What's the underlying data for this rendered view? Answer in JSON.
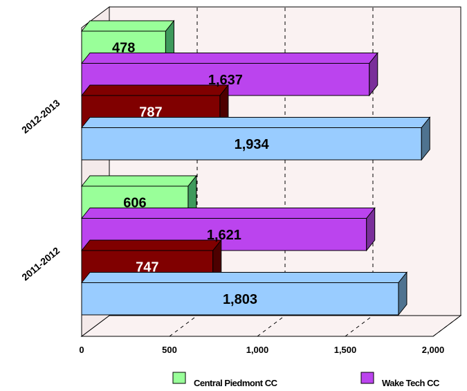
{
  "chart_data": {
    "type": "bar",
    "orientation": "horizontal",
    "categories": [
      "2011-2012",
      "2012-2013"
    ],
    "series": [
      {
        "name": "Central Piedmont CC",
        "values": [
          606,
          478
        ],
        "color": "#99ff99",
        "side": "#3e9a5c",
        "label_color": "#000000"
      },
      {
        "name": "Wake Tech CC",
        "values": [
          1621,
          1637
        ],
        "color": "#bb44ee",
        "side": "#7a2f9a",
        "label_color": "#000000"
      },
      {
        "name": "",
        "values": [
          747,
          787
        ],
        "color": "#800000",
        "side": "#4d0000",
        "label_color": "#ffffff"
      },
      {
        "name": "",
        "values": [
          1803,
          1934
        ],
        "color": "#99ccff",
        "side": "#4f7390",
        "label_color": "#000000"
      }
    ],
    "value_labels": [
      [
        "606",
        "1,621",
        "747",
        "1,803"
      ],
      [
        "478",
        "1,637",
        "787",
        "1,934"
      ]
    ],
    "xlim": [
      0,
      2000
    ],
    "xticks": [
      0,
      500,
      1000,
      1500,
      2000
    ],
    "xtick_labels": [
      "0",
      "500",
      "1,000",
      "1,500",
      "2,000"
    ],
    "grid": true,
    "legend_position": "bottom",
    "legend": [
      "Central Piedmont CC",
      "Wake Tech CC"
    ]
  }
}
